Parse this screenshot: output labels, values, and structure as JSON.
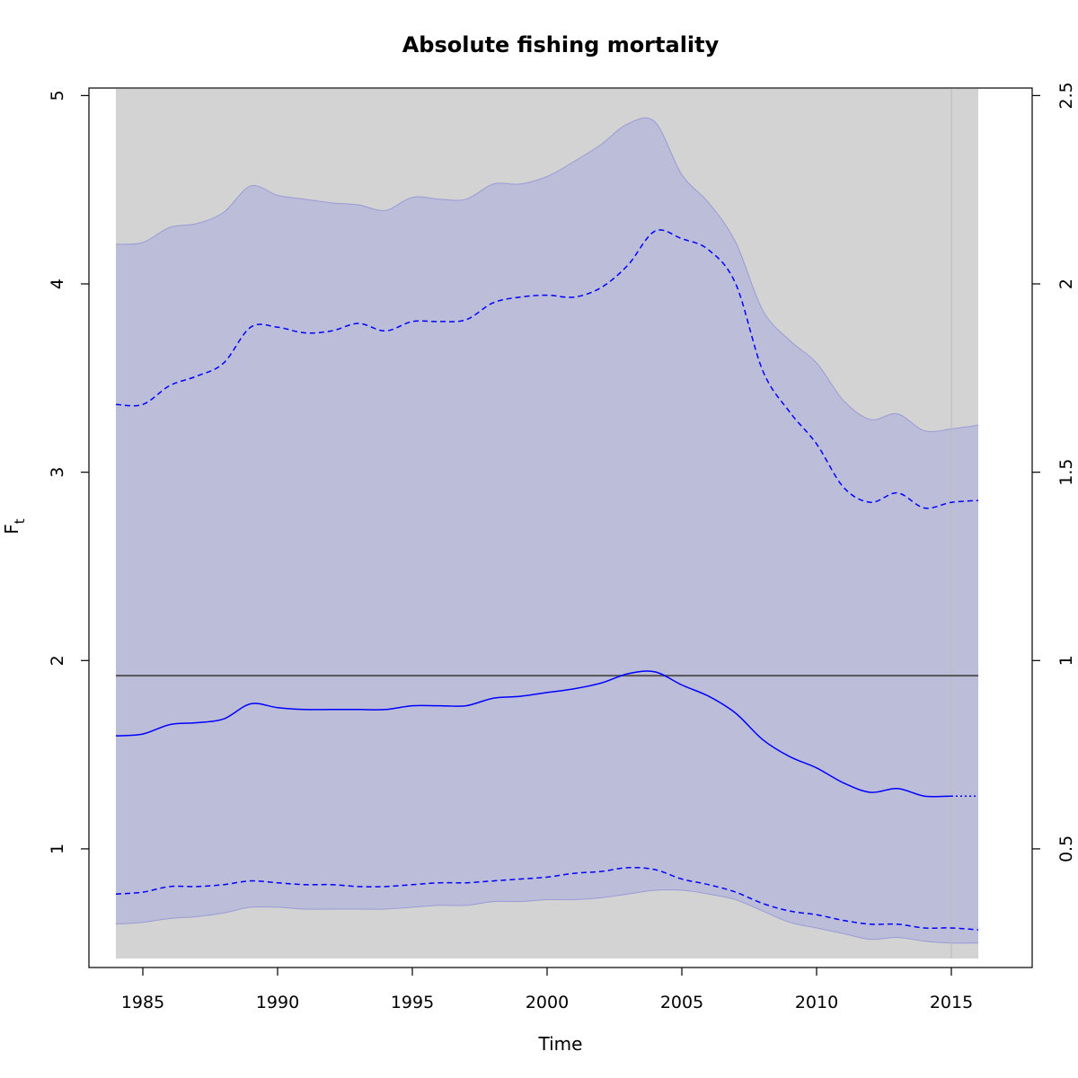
{
  "chart_data": {
    "type": "line",
    "title": "Absolute fishing mortality",
    "xlabel": "Time",
    "ylabel": "F",
    "ylabel_subscript": "t",
    "xlim": [
      1983,
      2018
    ],
    "ylim": [
      0.37,
      5.04
    ],
    "ylim_right": [
      0.185,
      2.52
    ],
    "x_ticks": [
      1985,
      1990,
      1995,
      2000,
      2005,
      2010,
      2015
    ],
    "y_ticks": [
      1,
      2,
      3,
      4,
      5
    ],
    "y_ticks_right": [
      0.5,
      1,
      1.5,
      2,
      2.5
    ],
    "y_tick_labels_right": [
      "0.5",
      "1",
      "1.5",
      "2",
      "2.5"
    ],
    "background_band": {
      "x": [
        1984,
        2016
      ],
      "color": "#d3d3d3"
    },
    "prediction_start": 2015,
    "reference_line": {
      "y": 1.92,
      "color": "#555555"
    },
    "colors": {
      "band": "#bcbdd9",
      "band_edge": "#9a9bd6",
      "line": "#0000ff",
      "vline": "#bdbdbd"
    },
    "x": [
      1984,
      1985,
      1986,
      1987,
      1988,
      1989,
      1990,
      1991,
      1992,
      1993,
      1994,
      1995,
      1996,
      1997,
      1998,
      1999,
      2000,
      2001,
      2002,
      2003,
      2004,
      2005,
      2006,
      2007,
      2008,
      2009,
      2010,
      2011,
      2012,
      2013,
      2014,
      2015,
      2016
    ],
    "series": [
      {
        "role": "outer_upper",
        "style": "band-edge",
        "values": [
          4.21,
          4.22,
          4.3,
          4.32,
          4.38,
          4.52,
          4.47,
          4.45,
          4.43,
          4.42,
          4.39,
          4.46,
          4.45,
          4.45,
          4.53,
          4.53,
          4.57,
          4.65,
          4.74,
          4.85,
          4.86,
          4.58,
          4.43,
          4.22,
          3.86,
          3.7,
          3.58,
          3.38,
          3.28,
          3.31,
          3.22,
          3.23,
          3.25
        ]
      },
      {
        "role": "upper",
        "style": "dashed",
        "values": [
          3.36,
          3.36,
          3.46,
          3.51,
          3.58,
          3.77,
          3.77,
          3.74,
          3.75,
          3.79,
          3.75,
          3.8,
          3.8,
          3.81,
          3.9,
          3.93,
          3.94,
          3.93,
          3.98,
          4.1,
          4.28,
          4.24,
          4.18,
          4.0,
          3.54,
          3.32,
          3.15,
          2.92,
          2.84,
          2.89,
          2.81,
          2.84,
          2.85
        ]
      },
      {
        "role": "estimate",
        "style": "solid",
        "values": [
          1.6,
          1.61,
          1.66,
          1.67,
          1.69,
          1.77,
          1.75,
          1.74,
          1.74,
          1.74,
          1.74,
          1.76,
          1.76,
          1.76,
          1.8,
          1.81,
          1.83,
          1.85,
          1.88,
          1.93,
          1.94,
          1.87,
          1.81,
          1.72,
          1.58,
          1.49,
          1.43,
          1.35,
          1.3,
          1.32,
          1.28,
          1.28,
          1.28
        ]
      },
      {
        "role": "lower",
        "style": "dashed",
        "values": [
          0.76,
          0.77,
          0.8,
          0.8,
          0.81,
          0.83,
          0.82,
          0.81,
          0.81,
          0.8,
          0.8,
          0.81,
          0.82,
          0.82,
          0.83,
          0.84,
          0.85,
          0.87,
          0.88,
          0.9,
          0.89,
          0.84,
          0.81,
          0.77,
          0.71,
          0.67,
          0.65,
          0.62,
          0.6,
          0.6,
          0.58,
          0.58,
          0.57
        ]
      },
      {
        "role": "outer_lower",
        "style": "band-edge",
        "values": [
          0.6,
          0.61,
          0.63,
          0.64,
          0.66,
          0.69,
          0.69,
          0.68,
          0.68,
          0.68,
          0.68,
          0.69,
          0.7,
          0.7,
          0.72,
          0.72,
          0.73,
          0.73,
          0.74,
          0.76,
          0.78,
          0.78,
          0.76,
          0.73,
          0.67,
          0.61,
          0.58,
          0.55,
          0.52,
          0.53,
          0.51,
          0.5,
          0.5
        ]
      }
    ]
  }
}
